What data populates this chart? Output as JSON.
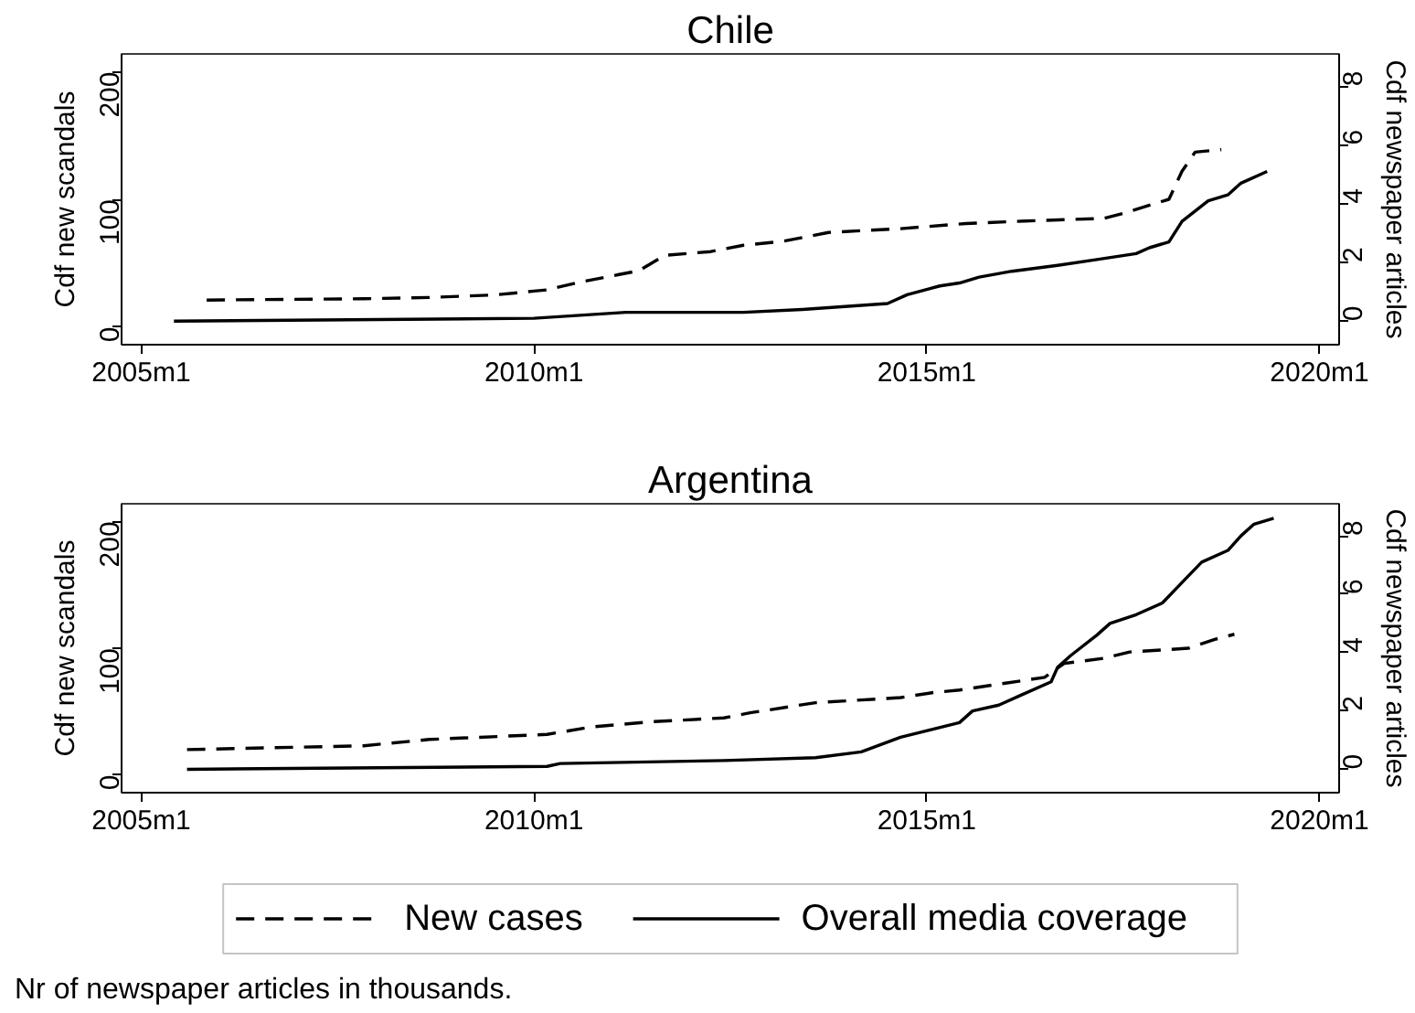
{
  "chart_data": [
    {
      "type": "line",
      "title": "Chile",
      "ylabel": "Cdf new scandals",
      "y2label": "Cdf newspaper articles",
      "xlim": [
        "2004-10",
        "2020-04"
      ],
      "xticks": [
        {
          "value": "2005-01",
          "label": "2005m1"
        },
        {
          "value": "2010-01",
          "label": "2010m1"
        },
        {
          "value": "2015-01",
          "label": "2015m1"
        },
        {
          "value": "2020-01",
          "label": "2020m1"
        }
      ],
      "ylim": [
        -14,
        214
      ],
      "yticks": [
        0,
        100,
        200
      ],
      "y2lim": [
        -0.8,
        9.1
      ],
      "y2ticks": [
        0,
        2,
        4,
        6,
        8
      ],
      "grid": false,
      "series": [
        {
          "color": "#000000",
          "line_style": "dashed",
          "x": [
            "2005-11",
            "2007-11",
            "2008-09",
            "2009-07",
            "2010-01",
            "2010-03",
            "2010-08",
            "2011-02",
            "2011-05",
            "2011-09",
            "2012-04",
            "2012-09",
            "2013-03",
            "2013-10",
            "2014-09",
            "2015-07",
            "2016-04",
            "2017-04",
            "2017-07",
            "2018-02",
            "2018-04",
            "2018-06",
            "2018-10"
          ],
          "values": [
            21,
            22,
            23,
            25,
            28,
            29,
            35,
            41,
            44,
            56,
            59,
            64,
            67,
            74,
            77,
            81,
            83,
            85,
            89,
            100,
            122,
            137,
            139
          ]
        },
        {
          "color": "#000000",
          "line_style": "solid",
          "axis": "y2",
          "x": [
            "2005-06",
            "2010-01",
            "2011-03",
            "2012-09",
            "2013-06",
            "2014-07",
            "2014-10",
            "2015-03",
            "2015-06",
            "2015-09",
            "2016-02",
            "2016-09",
            "2017-03",
            "2017-09",
            "2017-11",
            "2018-02",
            "2018-04",
            "2018-08",
            "2018-11",
            "2019-01",
            "2019-05"
          ],
          "values": [
            0,
            0.1,
            0.3,
            0.3,
            0.4,
            0.6,
            0.9,
            1.2,
            1.3,
            1.5,
            1.7,
            1.9,
            2.1,
            2.3,
            2.5,
            2.7,
            3.4,
            4.1,
            4.3,
            4.7,
            5.1
          ]
        }
      ]
    },
    {
      "type": "line",
      "title": "Argentina",
      "ylabel": "Cdf new scandals",
      "y2label": "Cdf newspaper articles",
      "xlim": [
        "2004-10",
        "2020-04"
      ],
      "xticks": [
        {
          "value": "2005-01",
          "label": "2005m1"
        },
        {
          "value": "2010-01",
          "label": "2010m1"
        },
        {
          "value": "2015-01",
          "label": "2015m1"
        },
        {
          "value": "2020-01",
          "label": "2020m1"
        }
      ],
      "ylim": [
        -14,
        214
      ],
      "yticks": [
        0,
        100,
        200
      ],
      "y2lim": [
        -0.8,
        9.1
      ],
      "y2ticks": [
        0,
        2,
        4,
        6,
        8
      ],
      "grid": false,
      "legend": "bottom",
      "annotations": [
        "Nr of newspaper articles in thousands."
      ],
      "series": [
        {
          "name": "New cases",
          "color": "#000000",
          "line_style": "dashed",
          "x": [
            "2005-08",
            "2007-11",
            "2008-09",
            "2010-03",
            "2010-10",
            "2011-07",
            "2012-06",
            "2012-10",
            "2013-08",
            "2014-09",
            "2015-02",
            "2015-06",
            "2016-07",
            "2016-10",
            "2017-04",
            "2017-08",
            "2018-05",
            "2018-09",
            "2018-12"
          ],
          "values": [
            20,
            23,
            28,
            32,
            38,
            42,
            45,
            49,
            57,
            61,
            65,
            67,
            77,
            88,
            92,
            97,
            100,
            107,
            111
          ]
        },
        {
          "name": "Overall media coverage",
          "color": "#000000",
          "line_style": "solid",
          "axis": "y2",
          "x": [
            "2005-08",
            "2010-03",
            "2010-05",
            "2012-06",
            "2013-08",
            "2014-03",
            "2014-09",
            "2015-06",
            "2015-08",
            "2015-12",
            "2016-03",
            "2016-08",
            "2016-09",
            "2016-11",
            "2017-03",
            "2017-05",
            "2017-09",
            "2018-01",
            "2018-04",
            "2018-07",
            "2018-11",
            "2019-01",
            "2019-03",
            "2019-06"
          ],
          "values": [
            0,
            0.1,
            0.2,
            0.3,
            0.4,
            0.6,
            1.1,
            1.6,
            2.0,
            2.2,
            2.5,
            3.0,
            3.5,
            3.9,
            4.6,
            5.0,
            5.3,
            5.7,
            6.4,
            7.1,
            7.5,
            8.0,
            8.4,
            8.6
          ]
        }
      ]
    }
  ]
}
